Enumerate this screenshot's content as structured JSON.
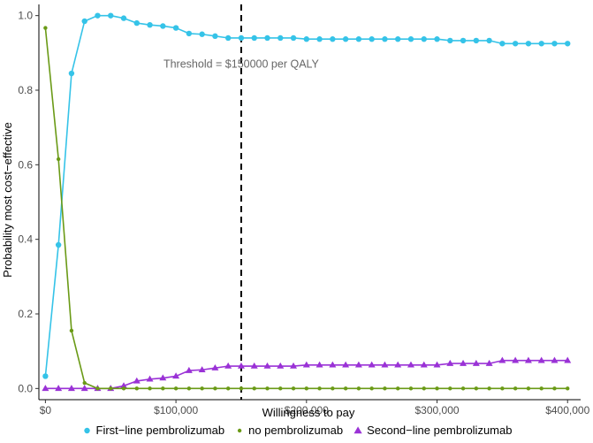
{
  "chart_data": {
    "type": "line",
    "title": "",
    "xlabel": "Willingness to pay",
    "ylabel": "Probability most cost−effective",
    "xlim": [
      -5000,
      410000
    ],
    "ylim": [
      -0.03,
      1.03
    ],
    "grid": false,
    "legend_position": "bottom",
    "x_ticks": [
      0,
      100000,
      200000,
      300000,
      400000
    ],
    "x_tick_labels": [
      "$0",
      "$100,000",
      "$200,000",
      "$300,000",
      "$400,000"
    ],
    "y_ticks": [
      0,
      0.2,
      0.4,
      0.6,
      0.8,
      1.0
    ],
    "y_tick_labels": [
      "0.0",
      "0.2",
      "0.4",
      "0.6",
      "0.8",
      "1.0"
    ],
    "x": [
      0,
      10000,
      20000,
      30000,
      40000,
      50000,
      60000,
      70000,
      80000,
      90000,
      100000,
      110000,
      120000,
      130000,
      140000,
      150000,
      160000,
      170000,
      180000,
      190000,
      200000,
      210000,
      220000,
      230000,
      240000,
      250000,
      260000,
      270000,
      280000,
      290000,
      300000,
      310000,
      320000,
      330000,
      340000,
      350000,
      360000,
      370000,
      380000,
      390000,
      400000
    ],
    "series": [
      {
        "name": "First−line pembrolizumab",
        "color": "#35c3e8",
        "marker": "circle",
        "values": [
          0.033,
          0.385,
          0.845,
          0.985,
          1.0,
          1.0,
          0.993,
          0.98,
          0.975,
          0.972,
          0.967,
          0.952,
          0.95,
          0.945,
          0.94,
          0.94,
          0.94,
          0.94,
          0.94,
          0.94,
          0.937,
          0.937,
          0.937,
          0.937,
          0.937,
          0.937,
          0.937,
          0.937,
          0.937,
          0.937,
          0.937,
          0.933,
          0.933,
          0.933,
          0.933,
          0.925,
          0.925,
          0.925,
          0.925,
          0.925,
          0.925
        ]
      },
      {
        "name": "no pembrolizumab",
        "color": "#6a9a16",
        "marker": "dot",
        "values": [
          0.967,
          0.615,
          0.155,
          0.015,
          0.0,
          0.0,
          0.0,
          0.0,
          0.0,
          0.0,
          0.0,
          0.0,
          0.0,
          0.0,
          0.0,
          0.0,
          0.0,
          0.0,
          0.0,
          0.0,
          0.0,
          0.0,
          0.0,
          0.0,
          0.0,
          0.0,
          0.0,
          0.0,
          0.0,
          0.0,
          0.0,
          0.0,
          0.0,
          0.0,
          0.0,
          0.0,
          0.0,
          0.0,
          0.0,
          0.0,
          0.0
        ]
      },
      {
        "name": "Second−line pembrolizumab",
        "color": "#9a32d6",
        "marker": "triangle",
        "values": [
          0.0,
          0.0,
          0.0,
          0.0,
          0.0,
          0.0,
          0.007,
          0.02,
          0.025,
          0.028,
          0.033,
          0.048,
          0.05,
          0.055,
          0.06,
          0.06,
          0.06,
          0.06,
          0.06,
          0.06,
          0.063,
          0.063,
          0.063,
          0.063,
          0.063,
          0.063,
          0.063,
          0.063,
          0.063,
          0.063,
          0.063,
          0.067,
          0.067,
          0.067,
          0.067,
          0.075,
          0.075,
          0.075,
          0.075,
          0.075,
          0.075
        ]
      }
    ],
    "threshold": {
      "x": 150000,
      "label": "Threshold = $150000 per QALY"
    }
  }
}
